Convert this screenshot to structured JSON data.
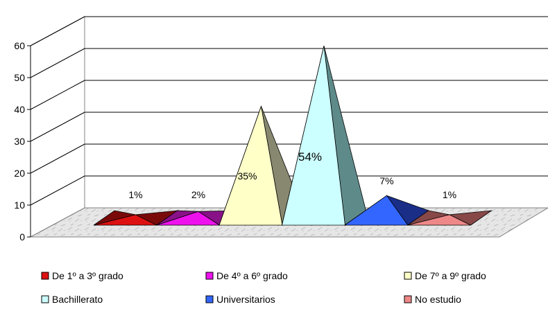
{
  "chart_data": {
    "type": "bar",
    "shape": "pyramid-3d",
    "categories": [
      "De 1º a  3º grado",
      "De 4º a  6º grado",
      "De 7º a  9º grado",
      "Bachillerato",
      "Universitarios",
      "No estudio"
    ],
    "values": [
      1,
      2,
      35,
      54,
      7,
      1
    ],
    "data_labels": [
      "1%",
      "2%",
      "35%",
      "54%",
      "7%",
      "1%"
    ],
    "colors": [
      "#dd1111",
      "#ee11ee",
      "#ffffc8",
      "#ccffff",
      "#3366ff",
      "#ee8888"
    ],
    "side_colors": [
      "#7a0a0a",
      "#881188",
      "#888870",
      "#5e8a8a",
      "#1a2e88",
      "#884848"
    ],
    "ylim": [
      0,
      60
    ],
    "yticks": [
      0,
      10,
      20,
      30,
      40,
      50,
      60
    ],
    "grid": true,
    "legend_position": "bottom"
  }
}
